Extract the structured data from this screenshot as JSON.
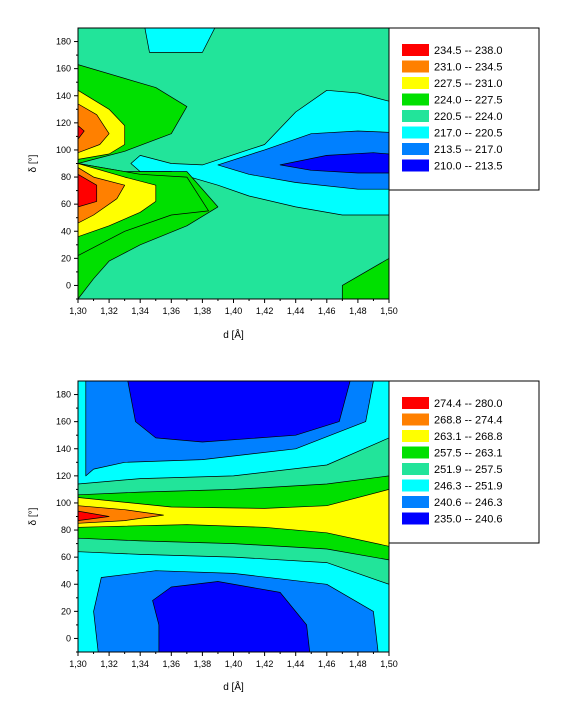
{
  "chart_data": [
    {
      "type": "contour",
      "xlabel": "d [Å]",
      "ylabel": "δ [°]",
      "xlim": [
        1.3,
        1.5
      ],
      "ylim": [
        -10,
        190
      ],
      "x_ticks": [
        "1,30",
        "1,32",
        "1,34",
        "1,36",
        "1,38",
        "1,40",
        "1,42",
        "1,44",
        "1,46",
        "1,48",
        "1,50"
      ],
      "y_ticks": [
        "0",
        "20",
        "40",
        "60",
        "80",
        "100",
        "120",
        "140",
        "160",
        "180"
      ],
      "background_color": "#22E49A",
      "legend": [
        {
          "label": "234.5  --  238.0",
          "color": "#FF0000"
        },
        {
          "label": "231.0  --  234.5",
          "color": "#FF8000"
        },
        {
          "label": "227.5  --  231.0",
          "color": "#FFFF00"
        },
        {
          "label": "224.0  --  227.5",
          "color": "#00E000"
        },
        {
          "label": "220.5  --  224.0",
          "color": "#22E49A"
        },
        {
          "label": "217.0  --  220.5",
          "color": "#00FFFF"
        },
        {
          "label": "213.5  --  217.0",
          "color": "#0080FF"
        },
        {
          "label": "210.0  --  213.5",
          "color": "#0000FF"
        }
      ],
      "regions": [
        {
          "level": 5,
          "pts": [
            [
              1.343,
              190
            ],
            [
              1.388,
              190
            ],
            [
              1.38,
              172
            ],
            [
              1.346,
              172
            ]
          ]
        },
        {
          "level": 3,
          "pts": [
            [
              1.3,
              163
            ],
            [
              1.35,
              146
            ],
            [
              1.37,
              132
            ],
            [
              1.36,
              112
            ],
            [
              1.33,
              99
            ],
            [
              1.31,
              93
            ],
            [
              1.3,
              90
            ]
          ]
        },
        {
          "level": 2,
          "pts": [
            [
              1.3,
              144
            ],
            [
              1.32,
              130
            ],
            [
              1.33,
              118
            ],
            [
              1.33,
              104
            ],
            [
              1.32,
              97
            ],
            [
              1.3,
              93
            ]
          ]
        },
        {
          "level": 1,
          "pts": [
            [
              1.3,
              134
            ],
            [
              1.312,
              126
            ],
            [
              1.32,
              112
            ],
            [
              1.314,
              104
            ],
            [
              1.3,
              98
            ]
          ]
        },
        {
          "level": 0,
          "pts": [
            [
              1.3,
              118
            ],
            [
              1.304,
              114
            ],
            [
              1.3,
              108
            ]
          ]
        },
        {
          "level": 5,
          "pts": [
            [
              1.334,
              90
            ],
            [
              1.34,
              96
            ],
            [
              1.36,
              90
            ],
            [
              1.38,
              89
            ],
            [
              1.42,
              104
            ],
            [
              1.44,
              128
            ],
            [
              1.46,
              144
            ],
            [
              1.48,
              142
            ],
            [
              1.5,
              136
            ],
            [
              1.5,
              52
            ],
            [
              1.47,
              52
            ],
            [
              1.44,
              58
            ],
            [
              1.41,
              66
            ],
            [
              1.39,
              74
            ],
            [
              1.36,
              84
            ],
            [
              1.34,
              84
            ]
          ]
        },
        {
          "level": 6,
          "pts": [
            [
              1.39,
              89
            ],
            [
              1.42,
              100
            ],
            [
              1.45,
              112
            ],
            [
              1.48,
              114
            ],
            [
              1.5,
              113
            ],
            [
              1.5,
              71
            ],
            [
              1.48,
              71
            ],
            [
              1.44,
              76
            ],
            [
              1.41,
              82
            ]
          ]
        },
        {
          "level": 7,
          "pts": [
            [
              1.43,
              89
            ],
            [
              1.46,
              96
            ],
            [
              1.49,
              98
            ],
            [
              1.5,
              97
            ],
            [
              1.5,
              83
            ],
            [
              1.48,
              83
            ],
            [
              1.45,
              85
            ]
          ]
        },
        {
          "level": 3,
          "pts": [
            [
              1.3,
              -10
            ],
            [
              1.3,
              90
            ],
            [
              1.33,
              84
            ],
            [
              1.37,
              84
            ],
            [
              1.39,
              58
            ],
            [
              1.37,
              44
            ],
            [
              1.34,
              30
            ],
            [
              1.32,
              18
            ],
            [
              1.31,
              5
            ],
            [
              1.3,
              -10
            ]
          ]
        },
        {
          "level": 3,
          "pts": [
            [
              1.3,
              -10
            ],
            [
              1.3,
              22
            ],
            [
              1.33,
              40
            ],
            [
              1.36,
              52
            ],
            [
              1.384,
              55
            ],
            [
              1.37,
              80
            ],
            [
              1.34,
              82
            ],
            [
              1.31,
              88
            ],
            [
              1.3,
              90
            ]
          ]
        },
        {
          "level": 2,
          "pts": [
            [
              1.3,
              90
            ],
            [
              1.33,
              80
            ],
            [
              1.35,
              74
            ],
            [
              1.35,
              62
            ],
            [
              1.34,
              54
            ],
            [
              1.32,
              44
            ],
            [
              1.3,
              36
            ]
          ]
        },
        {
          "level": 1,
          "pts": [
            [
              1.3,
              87
            ],
            [
              1.31,
              80
            ],
            [
              1.33,
              74
            ],
            [
              1.325,
              64
            ],
            [
              1.31,
              52
            ],
            [
              1.3,
              46
            ]
          ]
        },
        {
          "level": 0,
          "pts": [
            [
              1.3,
              82
            ],
            [
              1.312,
              74
            ],
            [
              1.312,
              62
            ],
            [
              1.3,
              58
            ]
          ]
        },
        {
          "level": 3,
          "pts": [
            [
              1.47,
              -10
            ],
            [
              1.47,
              0
            ],
            [
              1.5,
              20
            ],
            [
              1.5,
              -10
            ]
          ]
        }
      ]
    },
    {
      "type": "contour",
      "xlabel": "d [Å]",
      "ylabel": "δ [°]",
      "xlim": [
        1.3,
        1.5
      ],
      "ylim": [
        -10,
        190
      ],
      "x_ticks": [
        "1,30",
        "1,32",
        "1,34",
        "1,36",
        "1,38",
        "1,40",
        "1,42",
        "1,44",
        "1,46",
        "1,48",
        "1,50"
      ],
      "y_ticks": [
        "0",
        "20",
        "40",
        "60",
        "80",
        "100",
        "120",
        "140",
        "160",
        "180"
      ],
      "background_color": "#00E000",
      "legend": [
        {
          "label": "274.4  --  280.0",
          "color": "#FF0000"
        },
        {
          "label": "268.8  --  274.4",
          "color": "#FF8000"
        },
        {
          "label": "263.1  --  268.8",
          "color": "#FFFF00"
        },
        {
          "label": "257.5  --  263.1",
          "color": "#00E000"
        },
        {
          "label": "251.9  --  257.5",
          "color": "#22E49A"
        },
        {
          "label": "246.3  --  251.9",
          "color": "#00FFFF"
        },
        {
          "label": "240.6  --  246.3",
          "color": "#0080FF"
        },
        {
          "label": "235.0  --  240.6",
          "color": "#0000FF"
        }
      ],
      "regions": [
        {
          "level": 4,
          "pts": [
            [
              1.3,
              190
            ],
            [
              1.5,
              190
            ],
            [
              1.5,
              120
            ],
            [
              1.46,
              114
            ],
            [
              1.4,
              110
            ],
            [
              1.34,
              108
            ],
            [
              1.3,
              106
            ]
          ]
        },
        {
          "level": 5,
          "pts": [
            [
              1.3,
              190
            ],
            [
              1.5,
              190
            ],
            [
              1.5,
              148
            ],
            [
              1.46,
              128
            ],
            [
              1.4,
              120
            ],
            [
              1.34,
              118
            ],
            [
              1.3,
              114
            ]
          ]
        },
        {
          "level": 6,
          "pts": [
            [
              1.305,
              190
            ],
            [
              1.49,
              190
            ],
            [
              1.485,
              160
            ],
            [
              1.44,
              140
            ],
            [
              1.38,
              132
            ],
            [
              1.33,
              130
            ],
            [
              1.31,
              125
            ],
            [
              1.305,
              120
            ]
          ]
        },
        {
          "level": 7,
          "pts": [
            [
              1.332,
              190
            ],
            [
              1.475,
              190
            ],
            [
              1.468,
              160
            ],
            [
              1.44,
              150
            ],
            [
              1.38,
              145
            ],
            [
              1.35,
              148
            ],
            [
              1.337,
              160
            ]
          ]
        },
        {
          "level": 2,
          "pts": [
            [
              1.3,
              104
            ],
            [
              1.36,
              97
            ],
            [
              1.42,
              96
            ],
            [
              1.46,
              98
            ],
            [
              1.5,
              110
            ],
            [
              1.5,
              68
            ],
            [
              1.46,
              78
            ],
            [
              1.42,
              82
            ],
            [
              1.37,
              84
            ],
            [
              1.3,
              82
            ]
          ]
        },
        {
          "level": 1,
          "pts": [
            [
              1.3,
              98
            ],
            [
              1.33,
              95
            ],
            [
              1.355,
              91
            ],
            [
              1.33,
              87
            ],
            [
              1.3,
              85
            ]
          ]
        },
        {
          "level": 0,
          "pts": [
            [
              1.3,
              94
            ],
            [
              1.32,
              90
            ],
            [
              1.3,
              87
            ]
          ]
        },
        {
          "level": 4,
          "pts": [
            [
              1.3,
              -10
            ],
            [
              1.5,
              -10
            ],
            [
              1.5,
              58
            ],
            [
              1.46,
              66
            ],
            [
              1.4,
              70
            ],
            [
              1.34,
              72
            ],
            [
              1.3,
              74
            ]
          ]
        },
        {
          "level": 5,
          "pts": [
            [
              1.3,
              -10
            ],
            [
              1.5,
              -10
            ],
            [
              1.5,
              40
            ],
            [
              1.46,
              56
            ],
            [
              1.4,
              60
            ],
            [
              1.34,
              62
            ],
            [
              1.3,
              64
            ]
          ]
        },
        {
          "level": 6,
          "pts": [
            [
              1.313,
              -10
            ],
            [
              1.493,
              -10
            ],
            [
              1.49,
              20
            ],
            [
              1.46,
              40
            ],
            [
              1.4,
              48
            ],
            [
              1.35,
              50
            ],
            [
              1.315,
              45
            ],
            [
              1.31,
              20
            ]
          ]
        },
        {
          "level": 7,
          "pts": [
            [
              1.352,
              -10
            ],
            [
              1.449,
              -10
            ],
            [
              1.447,
              10
            ],
            [
              1.43,
              34
            ],
            [
              1.39,
              42
            ],
            [
              1.36,
              38
            ],
            [
              1.348,
              28
            ],
            [
              1.352,
              10
            ]
          ]
        }
      ]
    }
  ]
}
